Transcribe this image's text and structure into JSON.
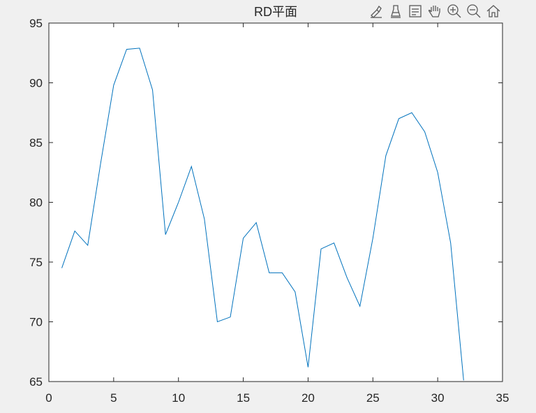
{
  "chart_data": {
    "type": "line",
    "title": "RD平面",
    "xlabel": "",
    "ylabel": "",
    "xlim": [
      0,
      35
    ],
    "ylim": [
      65,
      95
    ],
    "xticks": [
      "0",
      "5",
      "10",
      "15",
      "20",
      "25",
      "30",
      "35"
    ],
    "yticks": [
      "65",
      "70",
      "75",
      "80",
      "85",
      "90",
      "95"
    ],
    "grid": false,
    "series": [
      {
        "color": "#0072bd",
        "x": [
          1,
          2,
          3,
          4,
          5,
          6,
          7,
          8,
          9,
          10,
          11,
          12,
          13,
          14,
          15,
          16,
          17,
          18,
          19,
          20,
          21,
          22,
          23,
          24,
          25,
          26,
          27,
          28,
          29,
          30,
          31,
          32
        ],
        "y": [
          74.5,
          77.6,
          76.4,
          83.3,
          89.8,
          92.8,
          92.9,
          89.4,
          77.3,
          80.0,
          83.0,
          78.6,
          70.0,
          70.4,
          77.0,
          78.3,
          74.1,
          74.1,
          72.5,
          66.2,
          76.1,
          76.6,
          73.7,
          71.3,
          77.0,
          83.9,
          87.0,
          87.5,
          85.9,
          82.5,
          76.6,
          65.1
        ]
      }
    ]
  },
  "toolbar": {
    "items": [
      {
        "icon": "brush-icon"
      },
      {
        "icon": "data-tips-icon"
      },
      {
        "icon": "legend-icon"
      },
      {
        "icon": "pan-hand-icon"
      },
      {
        "icon": "zoom-in-icon"
      },
      {
        "icon": "zoom-out-icon"
      },
      {
        "icon": "home-icon"
      }
    ]
  }
}
